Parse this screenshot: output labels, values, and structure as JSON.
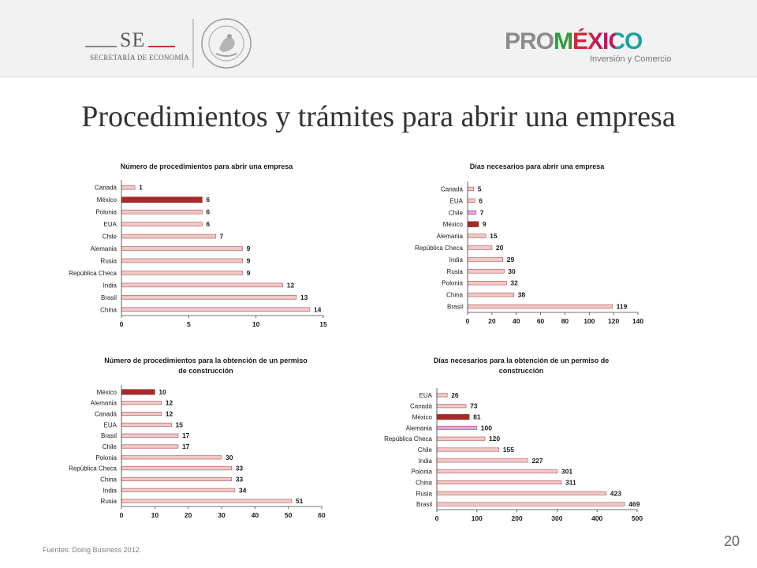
{
  "header": {
    "se_logo": {
      "initials": "SE",
      "subtitle": "SECRETARÍA DE ECONOMÍA"
    },
    "seal": {
      "icon": "mexican-coat-of-arms-seal",
      "caption": "ESTADOS UNIDOS MEXICANOS"
    },
    "promexico": {
      "pro": "PRO",
      "mexico": "MÉXICO",
      "tagline": "Inversión y Comercio"
    },
    "colors": {
      "accent_green": "#2e9c3e",
      "accent_red": "#d6243a",
      "accent_magenta": "#c2185b",
      "accent_teal": "#1aa3a3",
      "gray": "#8c8c8c"
    }
  },
  "page_title": "Procedimientos y trámites para abrir una empresa",
  "footer": {
    "source": "Fuentes: Doing Business 2012.",
    "page_number": "20"
  },
  "chart_data": [
    {
      "type": "bar",
      "orientation": "horizontal",
      "title": "Número de procedimientos  para abrir una empresa",
      "categories": [
        "Canadá",
        "México",
        "Polonia",
        "EUA",
        "Chile",
        "Alemania",
        "Rusia",
        "República Checa",
        "India",
        "Brasil",
        "China"
      ],
      "values": [
        1,
        6,
        6,
        6,
        7,
        9,
        9,
        9,
        12,
        13,
        14
      ],
      "highlight": [
        "México"
      ],
      "xlim": [
        0,
        15
      ],
      "xticks": [
        0,
        5,
        10,
        15
      ],
      "grid": false,
      "legend": "none"
    },
    {
      "type": "bar",
      "orientation": "horizontal",
      "title": "Días necesarios para abrir una empresa",
      "categories": [
        "Canadá",
        "EUA",
        "Chile",
        "México",
        "Alemania",
        "República Checa",
        "India",
        "Rusia",
        "Polonia",
        "China",
        "Brasil"
      ],
      "values": [
        5,
        6,
        7,
        9,
        15,
        20,
        29,
        30,
        32,
        38,
        119
      ],
      "highlight": [
        "México"
      ],
      "highlight_alt": [
        "Chile"
      ],
      "xlim": [
        0,
        140
      ],
      "xticks": [
        0,
        20,
        40,
        60,
        80,
        100,
        120,
        140
      ],
      "grid": false,
      "legend": "none"
    },
    {
      "type": "bar",
      "orientation": "horizontal",
      "title": "Número de procedimientos  para la obtención  de un permiso de construcción",
      "title_lines": [
        "Número de procedimientos  para la obtención  de un permiso",
        "de construcción"
      ],
      "categories": [
        "México",
        "Alemania",
        "Canadá",
        "EUA",
        "Brasil",
        "Chile",
        "Polonia",
        "República Checa",
        "China",
        "India",
        "Rusia"
      ],
      "values": [
        10,
        12,
        12,
        15,
        17,
        17,
        30,
        33,
        33,
        34,
        51
      ],
      "highlight": [
        "México"
      ],
      "xlim": [
        0,
        60
      ],
      "xticks": [
        0,
        10,
        20,
        30,
        40,
        50,
        60
      ],
      "grid": false,
      "legend": "none"
    },
    {
      "type": "bar",
      "orientation": "horizontal",
      "title": "Días necesarios para la obtención  de un permiso de construcción",
      "title_lines": [
        "Días necesarios para la obtención  de un permiso de",
        "construcción"
      ],
      "categories": [
        "EUA",
        "Canadá",
        "México",
        "Alemania",
        "República Checa",
        "Chile",
        "India",
        "Polonia",
        "China",
        "Rusia",
        "Brasil"
      ],
      "values": [
        26,
        73,
        81,
        100,
        120,
        155,
        227,
        301,
        311,
        423,
        469
      ],
      "highlight": [
        "México"
      ],
      "highlight_alt": [
        "Alemania"
      ],
      "xlim": [
        0,
        500
      ],
      "xticks": [
        0,
        100,
        200,
        300,
        400,
        500
      ],
      "grid": false,
      "legend": "none"
    }
  ],
  "chart_colors": {
    "bar": "#f0c8c8",
    "bar_edge": "#b05050",
    "highlight": "#a52a2a",
    "highlight_alt": "#d9a8e8",
    "axis": "#404040",
    "text": "#1a1a1a"
  }
}
